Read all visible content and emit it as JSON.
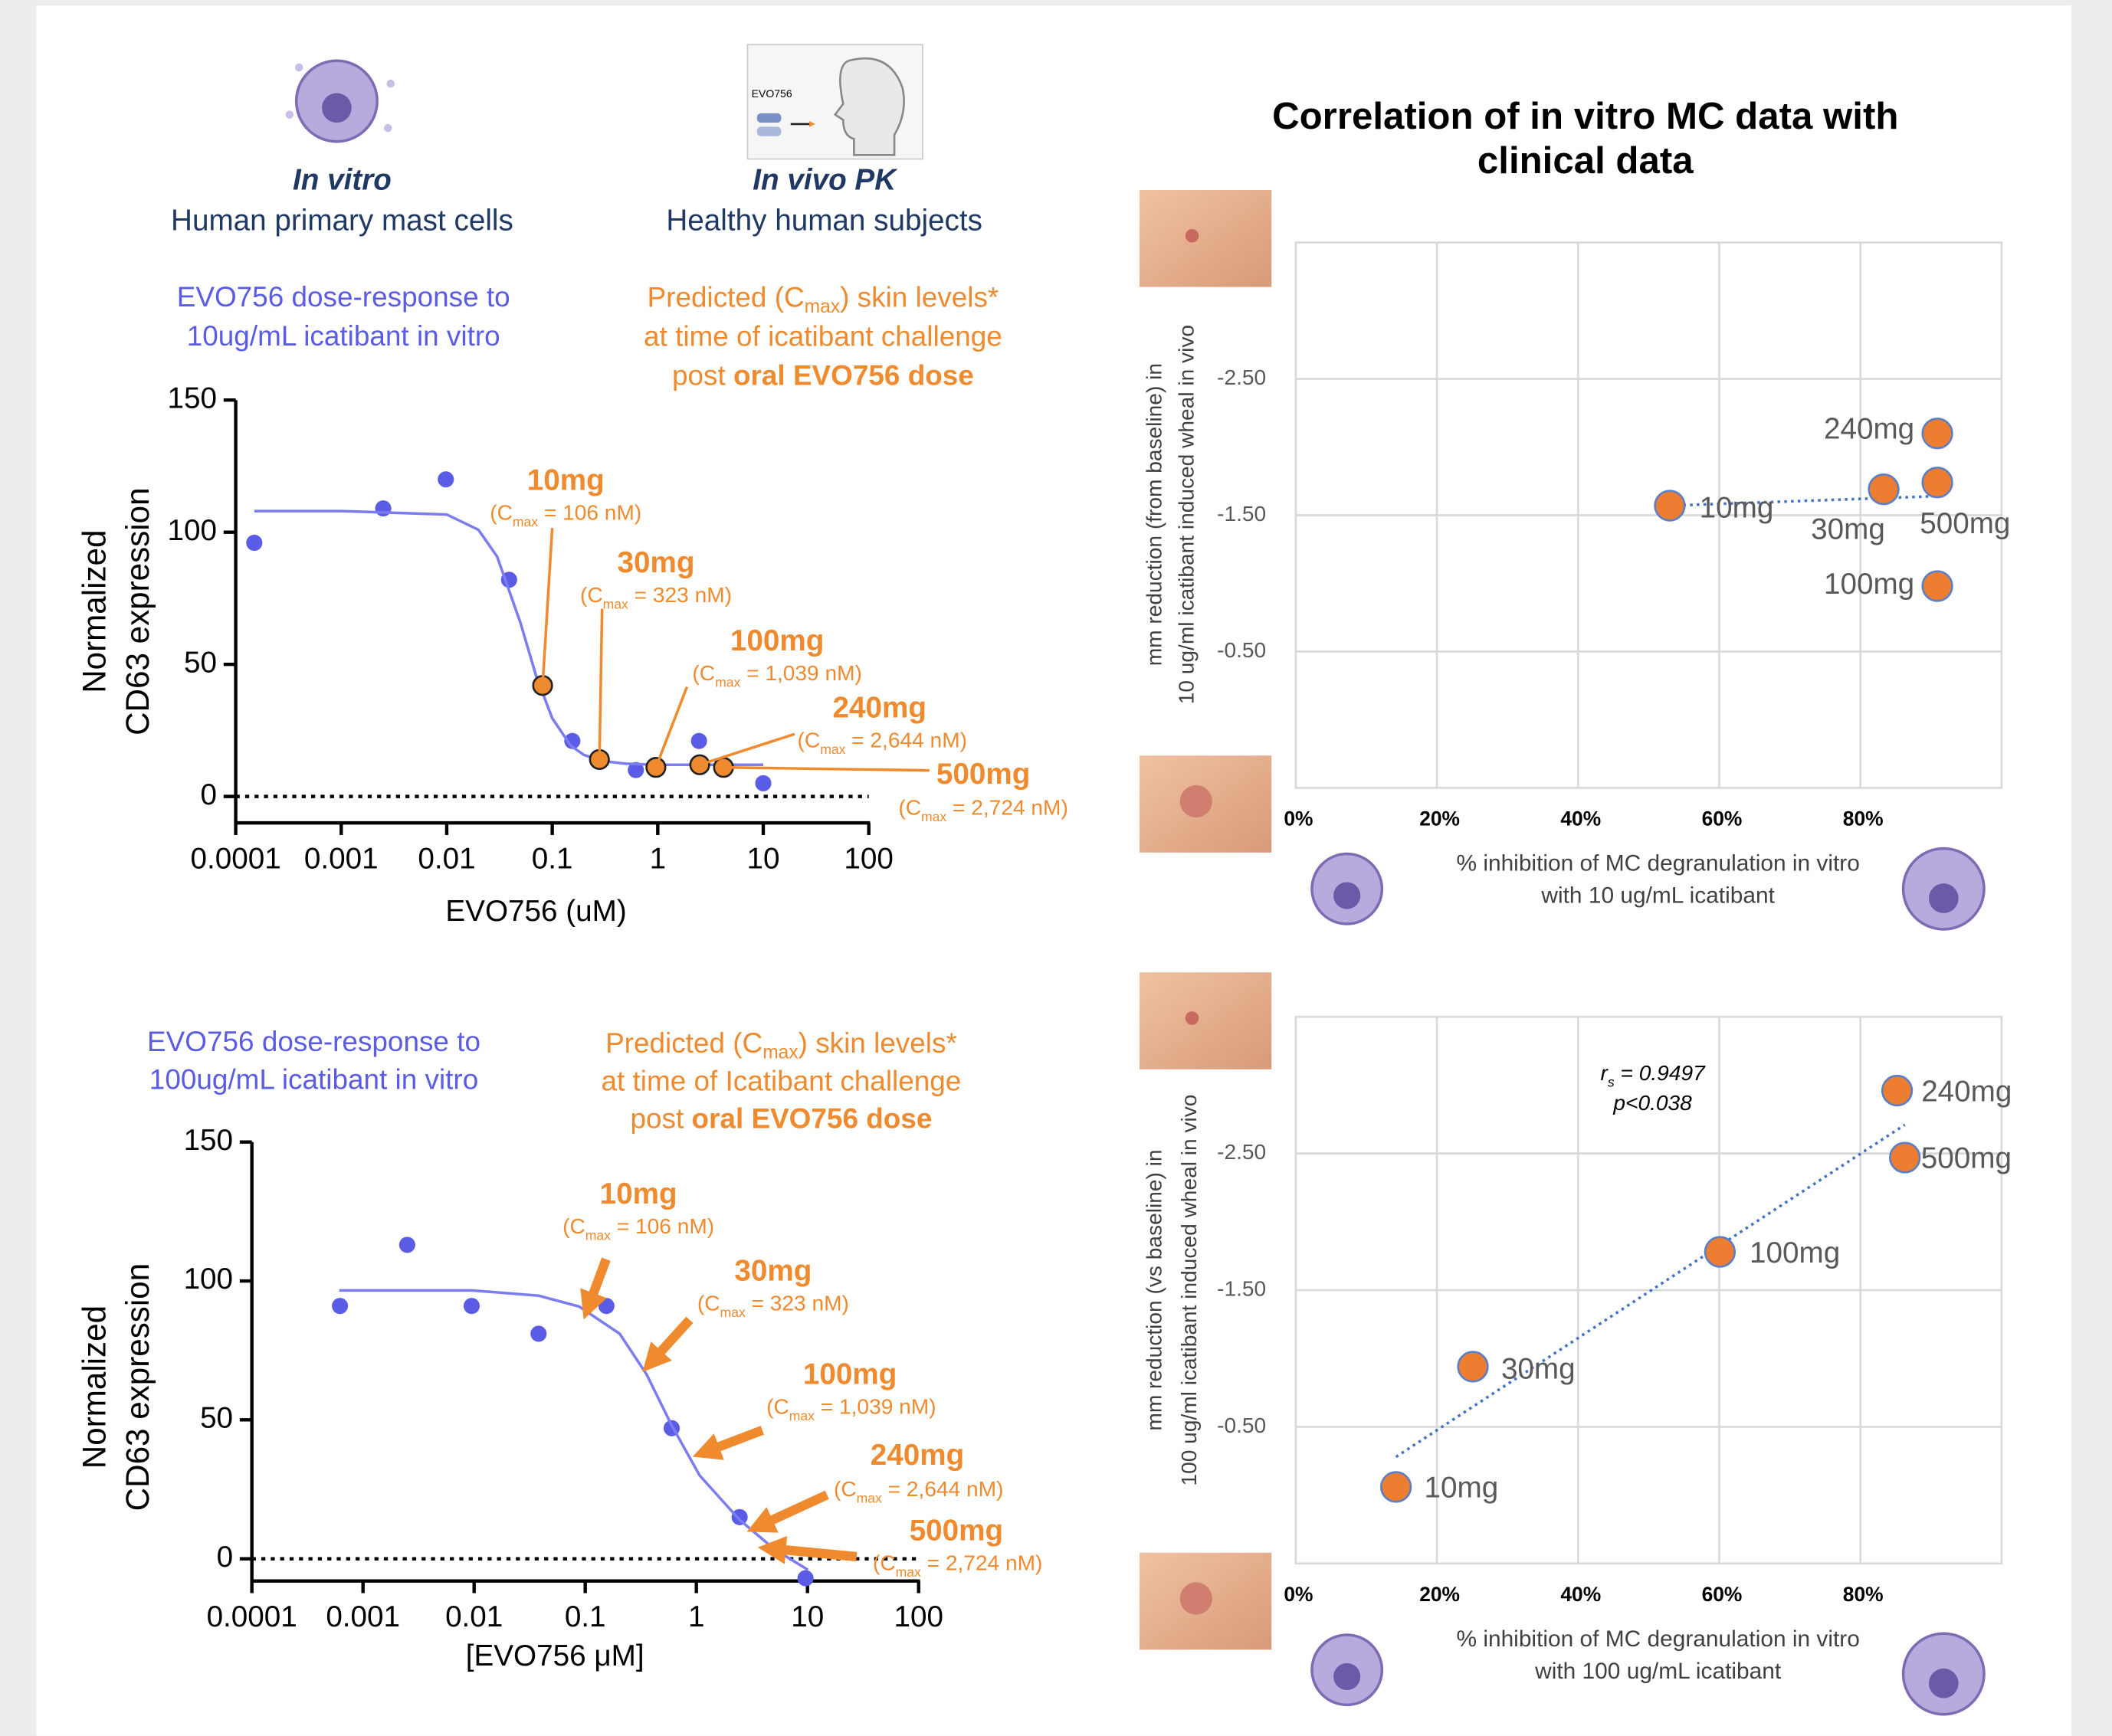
{
  "header": {
    "in_vitro": "In vitro",
    "in_vitro_sub": "Human primary mast cells",
    "in_vivo": "In vivo PK",
    "in_vivo_sub": "Healthy human subjects",
    "drug_label": "EVO756",
    "correlation_title": [
      "Correlation of in vitro MC data with",
      "clinical data"
    ]
  },
  "chart_data": [
    {
      "type": "scatter",
      "title": [
        "EVO756 dose-response to",
        "10ug/mL icatibant in vitro"
      ],
      "subtitle": [
        [
          "Predicted (C",
          "max",
          ") skin levels*"
        ],
        [
          "at time of icatibant challenge"
        ],
        [
          "post ",
          "oral EVO756 dose"
        ]
      ],
      "xlabel": "EVO756 (uM)",
      "ylabel": [
        "Normalized",
        "CD63 expression"
      ],
      "xscale": "log",
      "xlim": [
        0.0001,
        100
      ],
      "xticks": [
        0.0001,
        0.001,
        0.01,
        0.1,
        1,
        10,
        100
      ],
      "ylim": [
        -10,
        150
      ],
      "yticks": [
        0,
        50,
        100,
        150
      ],
      "hline": 0,
      "series": [
        {
          "kind": "points",
          "color": "#5b5ce6",
          "x": [
            0.00015,
            0.0025,
            0.0098,
            0.039,
            0.155,
            0.62,
            2.46,
            10
          ],
          "values": [
            96,
            109,
            120,
            82,
            21,
            10,
            21,
            5
          ]
        },
        {
          "kind": "line",
          "color": "#7b7cf0",
          "x": [
            0.00015,
            0.001,
            0.01,
            0.02,
            0.03,
            0.05,
            0.07,
            0.1,
            0.15,
            0.2,
            0.3,
            0.5,
            1,
            10
          ],
          "values": [
            108,
            108,
            106.7,
            100.9,
            90.8,
            65.7,
            45.9,
            29.6,
            19.2,
            15.7,
            13.4,
            12.4,
            12,
            12
          ]
        },
        {
          "kind": "points",
          "color": "#ef8a2e",
          "edgecolor": "#222222",
          "x": [
            0.081,
            0.28,
            0.96,
            2.5,
            4.2
          ],
          "values": [
            42,
            14,
            11,
            12,
            11
          ]
        }
      ],
      "annotations": [
        {
          "dose": "10mg",
          "cmax": [
            "(C",
            "max",
            " = 106 nM)"
          ]
        },
        {
          "dose": "30mg",
          "cmax": [
            "(C",
            "max",
            " = 323 nM)"
          ]
        },
        {
          "dose": "100mg",
          "cmax": [
            "(C",
            "max",
            " = 1,039 nM)"
          ]
        },
        {
          "dose": "240mg",
          "cmax": [
            "(C",
            "max",
            " = 2,644 nM)"
          ]
        },
        {
          "dose": "500mg",
          "cmax": [
            "(C",
            "max",
            " = 2,724 nM)"
          ]
        }
      ]
    },
    {
      "type": "scatter",
      "title": [
        "EVO756 dose-response to",
        "100ug/mL icatibant in vitro"
      ],
      "subtitle": [
        [
          "Predicted (C",
          "max",
          ") skin levels*"
        ],
        [
          "at time of Icatibant challenge"
        ],
        [
          "post ",
          "oral EVO756 dose"
        ]
      ],
      "xlabel": "[EVO756 μM]",
      "ylabel": [
        "Normalized",
        "CD63 expression"
      ],
      "xscale": "log",
      "xlim": [
        0.0001,
        100
      ],
      "xticks": [
        0.0001,
        0.001,
        0.01,
        0.1,
        1,
        10,
        100
      ],
      "ylim": [
        -8,
        150
      ],
      "yticks": [
        0,
        50,
        100,
        150
      ],
      "hline": 0,
      "series": [
        {
          "kind": "points",
          "color": "#5b5ce6",
          "x": [
            0.00062,
            0.0025,
            0.0095,
            0.038,
            0.155,
            0.6,
            2.45,
            9.6
          ],
          "values": [
            91,
            113,
            91,
            81,
            91,
            47,
            15,
            -7
          ]
        },
        {
          "kind": "line",
          "color": "#7b7cf0",
          "x": [
            0.00061,
            0.0095,
            0.038,
            0.088,
            0.204,
            0.355,
            0.6,
            1.07,
            2.45,
            5.05,
            10.1
          ],
          "values": [
            96.6,
            96.6,
            94.7,
            90.8,
            81,
            66.5,
            48,
            30,
            14,
            3.4,
            -4
          ]
        }
      ],
      "annotations": [
        {
          "dose": "10mg",
          "cmax": [
            "(C",
            "max",
            " = 106 nM)"
          ]
        },
        {
          "dose": "30mg",
          "cmax": [
            "(C",
            "max",
            " = 323 nM)"
          ]
        },
        {
          "dose": "100mg",
          "cmax": [
            "(C",
            "max",
            " = 1,039 nM)"
          ]
        },
        {
          "dose": "240mg",
          "cmax": [
            "(C",
            "max",
            " = 2,644 nM)"
          ]
        },
        {
          "dose": "500mg",
          "cmax": [
            "(C",
            "max",
            " = 2,724 nM)"
          ]
        }
      ]
    },
    {
      "type": "scatter",
      "xlabel": [
        "% inhibition of MC degranulation in vitro",
        "with 10 ug/mL icatibant"
      ],
      "ylabel": [
        "mm reduction (from baseline) in",
        "10 ug/ml icatibant induced wheal in vivo"
      ],
      "xlim": [
        0,
        100
      ],
      "xticks": [
        {
          "value": 0,
          "label": "0%"
        },
        {
          "value": 20,
          "label": "20%"
        },
        {
          "value": 40,
          "label": "40%"
        },
        {
          "value": 60,
          "label": "60%"
        },
        {
          "value": 80,
          "label": "80%"
        }
      ],
      "ylim": [
        0.5,
        -3.5
      ],
      "yticks": [
        {
          "value": -2.5,
          "label": "-2.50"
        },
        {
          "value": -1.5,
          "label": "-1.50"
        },
        {
          "value": -0.5,
          "label": "-0.50"
        }
      ],
      "grid": true,
      "series": [
        {
          "kind": "trend",
          "color": "#4472c4",
          "x": [
            53,
            91
          ],
          "values": [
            -1.57,
            -1.64
          ]
        },
        {
          "kind": "points",
          "color": "#ed7d31",
          "edgecolor": "#5b7fc7",
          "x": [
            53,
            83.3,
            90.9,
            90.9,
            90.9
          ],
          "values": [
            -1.57,
            -1.69,
            -0.98,
            -2.1,
            -1.74
          ],
          "point_labels": [
            "10mg",
            "30mg",
            "100mg",
            "240mg",
            "500mg"
          ]
        }
      ]
    },
    {
      "type": "scatter",
      "xlabel": [
        "% inhibition of MC degranulation in vitro",
        "with 100 ug/mL icatibant"
      ],
      "ylabel": [
        "mm reduction (vs baseline) in",
        "100 ug/ml icatibant induced wheal in vivo"
      ],
      "xlim": [
        0,
        100
      ],
      "xticks": [
        {
          "value": 0,
          "label": "0%"
        },
        {
          "value": 20,
          "label": "20%"
        },
        {
          "value": 40,
          "label": "40%"
        },
        {
          "value": 60,
          "label": "60%"
        },
        {
          "value": 80,
          "label": "80%"
        }
      ],
      "ylim": [
        0.5,
        -3.5
      ],
      "yticks": [
        {
          "value": -2.5,
          "label": "-2.50"
        },
        {
          "value": -1.5,
          "label": "-1.50"
        },
        {
          "value": -0.5,
          "label": "-0.50"
        }
      ],
      "grid": true,
      "series": [
        {
          "kind": "trend",
          "color": "#4472c4",
          "x": [
            14.2,
            86.3
          ],
          "values": [
            -0.28,
            -2.71
          ]
        },
        {
          "kind": "points",
          "color": "#ed7d31",
          "edgecolor": "#5b7fc7",
          "x": [
            14.2,
            25.1,
            60.1,
            85.2,
            86.3
          ],
          "values": [
            -0.06,
            -0.94,
            -1.78,
            -2.96,
            -2.47
          ],
          "point_labels": [
            "10mg",
            "30mg",
            "100mg",
            "240mg",
            "500mg"
          ]
        }
      ],
      "stats": {
        "r": [
          "r",
          "s",
          " = 0.9497"
        ],
        "p": "p<0.038"
      }
    }
  ]
}
